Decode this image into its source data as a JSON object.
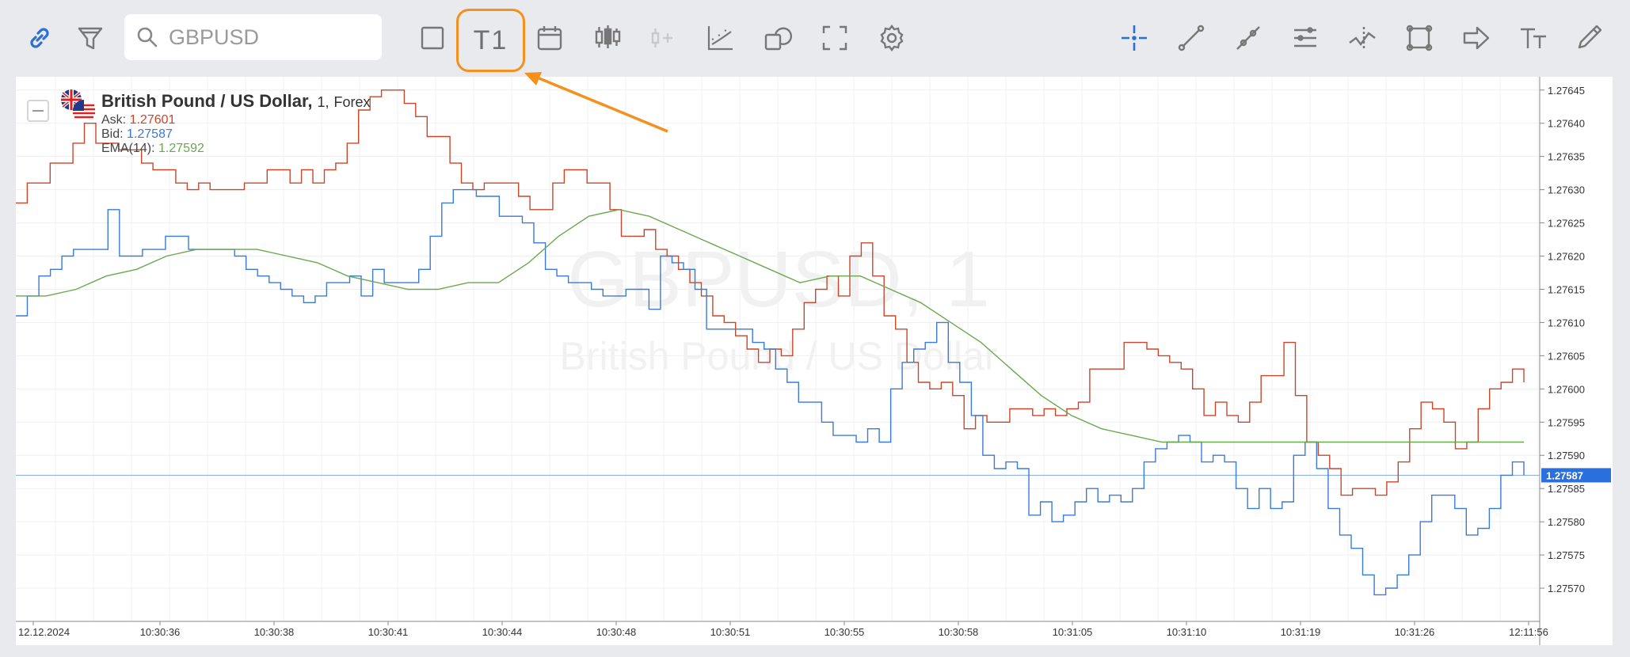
{
  "toolbar": {
    "search_placeholder": "GBPUSD",
    "timeframe_label": "T1",
    "left_icons": [
      "link-icon",
      "filter-icon"
    ],
    "mid_icons": [
      "rectangle-icon",
      "calendar-icon",
      "candlestick-icon",
      "add-indicator-icon",
      "chart-indicators-icon",
      "shape-icon",
      "fullscreen-icon",
      "gear-icon"
    ],
    "right_icons": [
      "crosshair-icon",
      "trendline-icon",
      "ray-icon",
      "parallel-lines-icon",
      "fibonacci-icon",
      "rectangle-shape-icon",
      "arrow-right-icon",
      "text-icon",
      "brush-icon"
    ],
    "accent": "#2a6fdb",
    "highlight": "#f4911e"
  },
  "legend": {
    "title": "British Pound / US Dollar,",
    "interval": "1,",
    "market": "Forex",
    "ask_label": "Ask:",
    "ask_value": "1.27601",
    "bid_label": "Bid:",
    "bid_value": "1.27587",
    "ema_label": "EMA(14):",
    "ema_value": "1.27592"
  },
  "watermark": {
    "symbol": "GBPUSD, 1",
    "name": "British Pound / US Dollar"
  },
  "chart_data": {
    "type": "line",
    "y_ticks": [
      "1.27645",
      "1.27640",
      "1.27635",
      "1.27630",
      "1.27625",
      "1.27620",
      "1.27615",
      "1.27610",
      "1.27605",
      "1.27600",
      "1.27595",
      "1.27590",
      "1.27585",
      "1.27580",
      "1.27575",
      "1.27570"
    ],
    "x_ticks": [
      "12.12.2024",
      "10:30:36",
      "10:30:38",
      "10:30:41",
      "10:30:44",
      "10:30:48",
      "10:30:51",
      "10:30:55",
      "10:30:58",
      "10:31:05",
      "10:31:10",
      "10:31:19",
      "10:31:26",
      "12:11:56"
    ],
    "ylim": [
      1.27565,
      1.27647
    ],
    "current_bid": "1.27587",
    "series": [
      {
        "name": "Ask",
        "color": "#c8472b",
        "values": [
          1.27628,
          1.27631,
          1.27631,
          1.27634,
          1.27634,
          1.27637,
          1.2764,
          1.27637,
          1.27637,
          1.27636,
          1.27636,
          1.27634,
          1.27633,
          1.27633,
          1.27631,
          1.2763,
          1.27631,
          1.2763,
          1.2763,
          1.2763,
          1.27631,
          1.27631,
          1.27633,
          1.27633,
          1.27631,
          1.27633,
          1.27631,
          1.27633,
          1.27634,
          1.27637,
          1.27642,
          1.27644,
          1.27645,
          1.27645,
          1.27643,
          1.27641,
          1.27638,
          1.27638,
          1.27634,
          1.27631,
          1.2763,
          1.27631,
          1.27631,
          1.27631,
          1.27629,
          1.27627,
          1.27627,
          1.27631,
          1.27633,
          1.27633,
          1.27631,
          1.27631,
          1.27627,
          1.27623,
          1.27623,
          1.27624,
          1.27621,
          1.2762,
          1.27618,
          1.27616,
          1.27614,
          1.27611,
          1.2761,
          1.27608,
          1.27606,
          1.27604,
          1.27606,
          1.27605,
          1.27609,
          1.27613,
          1.27615,
          1.27617,
          1.27614,
          1.2762,
          1.27622,
          1.27617,
          1.27611,
          1.27609,
          1.27604,
          1.27601,
          1.276,
          1.27601,
          1.27599,
          1.27594,
          1.27596,
          1.27595,
          1.27595,
          1.27597,
          1.27597,
          1.27596,
          1.27597,
          1.27596,
          1.27597,
          1.27598,
          1.27603,
          1.27603,
          1.27603,
          1.27607,
          1.27607,
          1.27606,
          1.27605,
          1.27604,
          1.27603,
          1.276,
          1.27596,
          1.27598,
          1.27596,
          1.27595,
          1.27598,
          1.27602,
          1.27602,
          1.27607,
          1.27599,
          1.27592,
          1.2759,
          1.27588,
          1.27584,
          1.27585,
          1.27585,
          1.27584,
          1.27586,
          1.27589,
          1.27594,
          1.27598,
          1.27597,
          1.27595,
          1.27591,
          1.27592,
          1.27597,
          1.276,
          1.27601,
          1.27603,
          1.27601
        ]
      },
      {
        "name": "Bid",
        "color": "#3a7bd5",
        "values": [
          1.27611,
          1.27614,
          1.27617,
          1.27618,
          1.2762,
          1.27621,
          1.27621,
          1.27621,
          1.27627,
          1.2762,
          1.2762,
          1.27621,
          1.27621,
          1.27623,
          1.27623,
          1.27621,
          1.27621,
          1.27621,
          1.27621,
          1.2762,
          1.27618,
          1.27617,
          1.27616,
          1.27615,
          1.27614,
          1.27613,
          1.27614,
          1.27616,
          1.27616,
          1.27617,
          1.27614,
          1.27618,
          1.27616,
          1.27616,
          1.27616,
          1.27618,
          1.27623,
          1.27628,
          1.2763,
          1.2763,
          1.27629,
          1.27629,
          1.27626,
          1.27626,
          1.27625,
          1.27622,
          1.27618,
          1.27617,
          1.27616,
          1.27616,
          1.27615,
          1.27614,
          1.27614,
          1.27615,
          1.27615,
          1.27612,
          1.2762,
          1.27619,
          1.27618,
          1.27615,
          1.27609,
          1.27609,
          1.27609,
          1.27609,
          1.27607,
          1.27606,
          1.27603,
          1.27601,
          1.27598,
          1.27598,
          1.27595,
          1.27593,
          1.27593,
          1.27592,
          1.27594,
          1.27592,
          1.276,
          1.27604,
          1.27606,
          1.27607,
          1.2761,
          1.27604,
          1.27601,
          1.27596,
          1.2759,
          1.27588,
          1.27589,
          1.27588,
          1.27581,
          1.27583,
          1.2758,
          1.27581,
          1.27583,
          1.27585,
          1.27583,
          1.27584,
          1.27583,
          1.27585,
          1.27589,
          1.27591,
          1.27592,
          1.27593,
          1.27592,
          1.27589,
          1.2759,
          1.27589,
          1.27585,
          1.27582,
          1.27585,
          1.27582,
          1.27583,
          1.2759,
          1.27592,
          1.27588,
          1.27582,
          1.27578,
          1.27576,
          1.27572,
          1.27569,
          1.2757,
          1.27572,
          1.27575,
          1.2758,
          1.27584,
          1.27584,
          1.27582,
          1.27578,
          1.27579,
          1.27582,
          1.27587,
          1.27589,
          1.27587
        ]
      },
      {
        "name": "EMA(14)",
        "color": "#6aa84f",
        "values": [
          1.27614,
          1.27614,
          1.27615,
          1.27617,
          1.27618,
          1.2762,
          1.27621,
          1.27621,
          1.27621,
          1.2762,
          1.27619,
          1.27617,
          1.27616,
          1.27615,
          1.27615,
          1.27616,
          1.27616,
          1.27619,
          1.27623,
          1.27626,
          1.27627,
          1.27626,
          1.27624,
          1.27622,
          1.2762,
          1.27618,
          1.27616,
          1.27617,
          1.27617,
          1.27615,
          1.27613,
          1.2761,
          1.27607,
          1.27603,
          1.27599,
          1.27596,
          1.27594,
          1.27593,
          1.27592,
          1.27592,
          1.27592,
          1.27592,
          1.27592,
          1.27592,
          1.27592,
          1.27592,
          1.27592,
          1.27592,
          1.27592,
          1.27592,
          1.27592
        ]
      }
    ]
  }
}
